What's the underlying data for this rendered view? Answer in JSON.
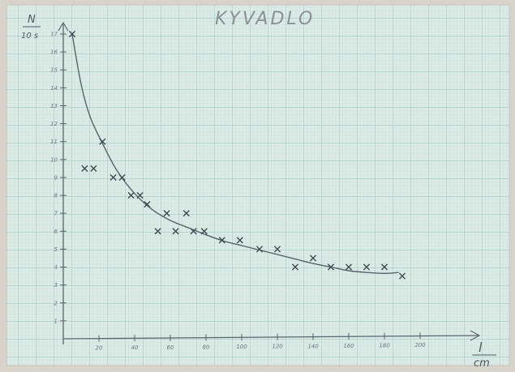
{
  "chart_data": {
    "type": "scatter",
    "title": "KYVADLO",
    "xlabel_num": "l",
    "xlabel_den": "cm",
    "ylabel_num": "N",
    "ylabel_den": "10 s",
    "xlim": [
      0,
      210
    ],
    "ylim": [
      0,
      17
    ],
    "x_ticks": [
      20,
      40,
      60,
      80,
      100,
      120,
      140,
      160,
      180,
      200
    ],
    "x_tick_labels": [
      "20",
      "40",
      "60",
      "80",
      "100",
      "120",
      "140",
      "160",
      "180",
      "200"
    ],
    "y_ticks": [
      1,
      2,
      3,
      4,
      5,
      6,
      7,
      8,
      9,
      10,
      11,
      12,
      13,
      14,
      15,
      16,
      17
    ],
    "y_tick_labels": [
      "1",
      "2",
      "3",
      "4",
      "5",
      "6",
      "7",
      "8",
      "9",
      "10",
      "11",
      "12",
      "13",
      "14",
      "15",
      "16",
      "17"
    ],
    "grid": true,
    "marker": "x",
    "points": [
      {
        "x": 5,
        "y": 17
      },
      {
        "x": 12,
        "y": 9.5
      },
      {
        "x": 17,
        "y": 9.5
      },
      {
        "x": 22,
        "y": 11
      },
      {
        "x": 28,
        "y": 9
      },
      {
        "x": 33,
        "y": 9
      },
      {
        "x": 38,
        "y": 8
      },
      {
        "x": 43,
        "y": 8
      },
      {
        "x": 47,
        "y": 7.5
      },
      {
        "x": 53,
        "y": 6
      },
      {
        "x": 58,
        "y": 7
      },
      {
        "x": 63,
        "y": 6
      },
      {
        "x": 69,
        "y": 7
      },
      {
        "x": 73,
        "y": 6
      },
      {
        "x": 79,
        "y": 6
      },
      {
        "x": 89,
        "y": 5.5
      },
      {
        "x": 99,
        "y": 5.5
      },
      {
        "x": 110,
        "y": 5
      },
      {
        "x": 120,
        "y": 5
      },
      {
        "x": 130,
        "y": 4
      },
      {
        "x": 140,
        "y": 4.5
      },
      {
        "x": 150,
        "y": 4
      },
      {
        "x": 160,
        "y": 4
      },
      {
        "x": 170,
        "y": 4
      },
      {
        "x": 180,
        "y": 4
      },
      {
        "x": 190,
        "y": 3.5
      }
    ],
    "fit_curve": [
      {
        "x": 5,
        "y": 17
      },
      {
        "x": 10,
        "y": 14.2
      },
      {
        "x": 15,
        "y": 12.4
      },
      {
        "x": 22,
        "y": 10.9
      },
      {
        "x": 30,
        "y": 9.4
      },
      {
        "x": 40,
        "y": 8.1
      },
      {
        "x": 50,
        "y": 7.2
      },
      {
        "x": 60,
        "y": 6.6
      },
      {
        "x": 70,
        "y": 6.2
      },
      {
        "x": 80,
        "y": 5.8
      },
      {
        "x": 90,
        "y": 5.45
      },
      {
        "x": 100,
        "y": 5.2
      },
      {
        "x": 110,
        "y": 4.95
      },
      {
        "x": 120,
        "y": 4.7
      },
      {
        "x": 130,
        "y": 4.45
      },
      {
        "x": 140,
        "y": 4.2
      },
      {
        "x": 150,
        "y": 4.0
      },
      {
        "x": 160,
        "y": 3.8
      },
      {
        "x": 170,
        "y": 3.7
      },
      {
        "x": 180,
        "y": 3.65
      },
      {
        "x": 188,
        "y": 3.7
      }
    ],
    "colors": {
      "paper": "#dcebe6",
      "grid_minor": "#bcd9d3",
      "grid_major": "#8fc0b8",
      "ink": "#4a545e"
    }
  }
}
